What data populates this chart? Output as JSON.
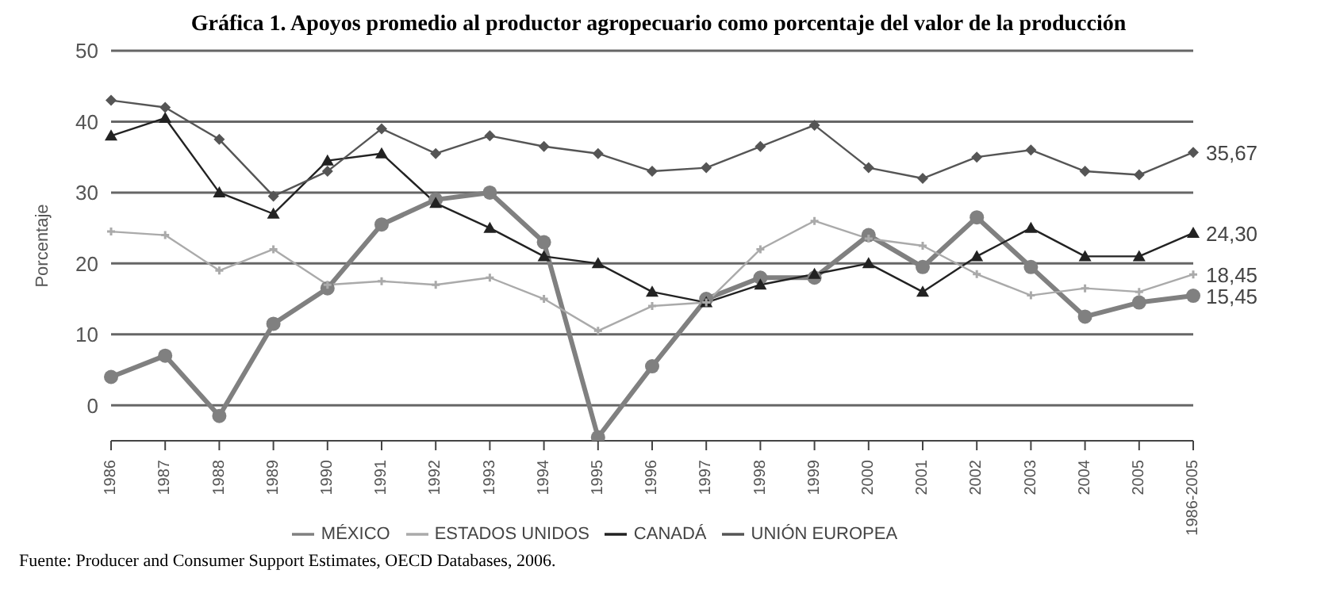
{
  "chart_data": {
    "type": "line",
    "title": "Gráfica 1. Apoyos promedio al productor agropecuario como porcentaje del valor de la producción",
    "ylabel": "Porcentaje",
    "categories": [
      "1986",
      "1987",
      "1988",
      "1989",
      "1990",
      "1991",
      "1992",
      "1993",
      "1994",
      "1995",
      "1996",
      "1997",
      "1998",
      "1999",
      "2000",
      "2001",
      "2002",
      "2003",
      "2004",
      "2005",
      "1986-2005"
    ],
    "series": [
      {
        "name": "MÉXICO",
        "color": "#808080",
        "marker": "circle",
        "values": [
          4,
          7,
          -1.5,
          11.5,
          16.5,
          25.5,
          29,
          30,
          23,
          -4.5,
          5.5,
          15,
          18,
          18,
          24,
          19.5,
          26.5,
          19.5,
          12.5,
          14.5,
          15.45
        ],
        "value_labels": [
          null,
          null,
          null,
          null,
          null,
          null,
          null,
          null,
          null,
          null,
          null,
          null,
          null,
          null,
          null,
          null,
          null,
          null,
          null,
          null,
          "15,45"
        ]
      },
      {
        "name": "ESTADOS UNIDOS",
        "color": "#aaaaaa",
        "marker": "cross",
        "values": [
          24.5,
          24,
          19,
          22,
          17,
          17.5,
          17,
          18,
          15,
          10.5,
          14,
          14.5,
          22,
          26,
          23.5,
          22.5,
          18.5,
          15.5,
          16.5,
          16,
          18.45
        ],
        "value_labels": [
          null,
          null,
          null,
          null,
          null,
          null,
          null,
          null,
          null,
          null,
          null,
          null,
          null,
          null,
          null,
          null,
          null,
          null,
          null,
          null,
          "18,45"
        ]
      },
      {
        "name": "CANADÁ",
        "color": "#222222",
        "marker": "triangle",
        "values": [
          38,
          40.5,
          30,
          27,
          34.5,
          35.5,
          28.5,
          25,
          21,
          20,
          16,
          14.5,
          17,
          18.5,
          20,
          16,
          21,
          25,
          21,
          21,
          24.3
        ],
        "value_labels": [
          null,
          null,
          null,
          null,
          null,
          null,
          null,
          null,
          null,
          null,
          null,
          null,
          null,
          null,
          null,
          null,
          null,
          null,
          null,
          null,
          "24,30"
        ]
      },
      {
        "name": "UNIÓN EUROPEA",
        "color": "#555555",
        "marker": "diamond",
        "values": [
          43,
          42,
          37.5,
          29.5,
          33,
          39,
          35.5,
          38,
          36.5,
          35.5,
          33,
          33.5,
          36.5,
          39.5,
          33.5,
          32,
          35,
          36,
          33,
          32.5,
          35.67
        ],
        "value_labels": [
          null,
          null,
          null,
          null,
          null,
          null,
          null,
          null,
          null,
          null,
          null,
          null,
          null,
          null,
          null,
          null,
          null,
          null,
          null,
          null,
          "35,67"
        ]
      }
    ],
    "ylim": [
      -5,
      50
    ],
    "yticks": [
      0,
      10,
      20,
      30,
      40,
      50
    ],
    "grid": "y",
    "legend": "bottom",
    "line_style": "solid",
    "annotations": [
      "Fuente: Producer and Consumer Support Estimates, OECD Databases, 2006."
    ]
  }
}
